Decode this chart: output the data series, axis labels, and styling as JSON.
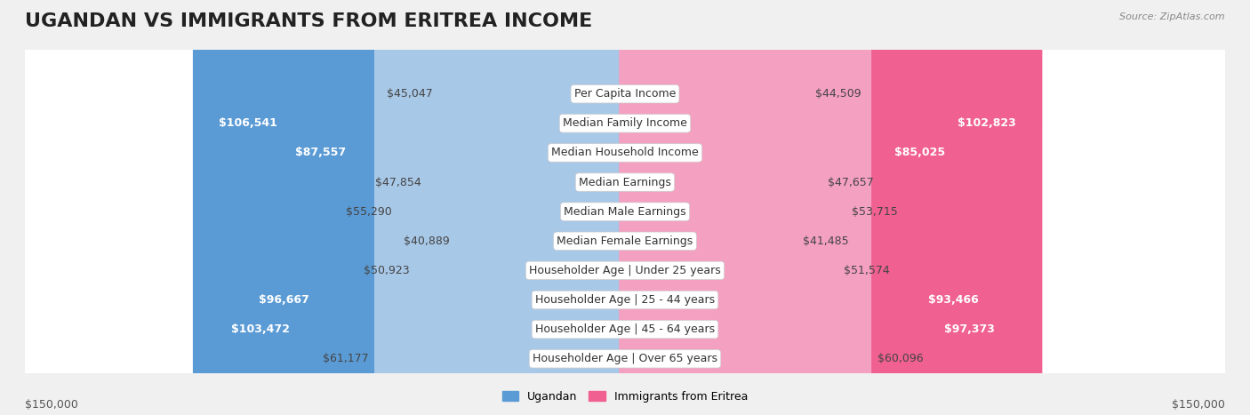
{
  "title": "UGANDAN VS IMMIGRANTS FROM ERITREA INCOME",
  "source": "Source: ZipAtlas.com",
  "categories": [
    "Per Capita Income",
    "Median Family Income",
    "Median Household Income",
    "Median Earnings",
    "Median Male Earnings",
    "Median Female Earnings",
    "Householder Age | Under 25 years",
    "Householder Age | 25 - 44 years",
    "Householder Age | 45 - 64 years",
    "Householder Age | Over 65 years"
  ],
  "ugandan_values": [
    45047,
    106541,
    87557,
    47854,
    55290,
    40889,
    50923,
    96667,
    103472,
    61177
  ],
  "eritrea_values": [
    44509,
    102823,
    85025,
    47657,
    53715,
    41485,
    51574,
    93466,
    97373,
    60096
  ],
  "ugandan_labels": [
    "$45,047",
    "$106,541",
    "$87,557",
    "$47,854",
    "$55,290",
    "$40,889",
    "$50,923",
    "$96,667",
    "$103,472",
    "$61,177"
  ],
  "eritrea_labels": [
    "$44,509",
    "$102,823",
    "$85,025",
    "$47,657",
    "$53,715",
    "$41,485",
    "$51,574",
    "$93,466",
    "$97,373",
    "$60,096"
  ],
  "ugandan_color_light": "#a8c8e8",
  "ugandan_color_dark": "#5b9bd5",
  "eritrea_color_light": "#f4a0c0",
  "eritrea_color_dark": "#f06090",
  "max_value": 150000,
  "xlabel_left": "$150,000",
  "xlabel_right": "$150,000",
  "legend_ugandan": "Ugandan",
  "legend_eritrea": "Immigrants from Eritrea",
  "background_color": "#f0f0f0",
  "row_bg_color": "#ffffff",
  "row_alt_color": "#f5f5f5",
  "title_fontsize": 16,
  "label_fontsize": 9,
  "category_fontsize": 9,
  "large_threshold": 65000
}
